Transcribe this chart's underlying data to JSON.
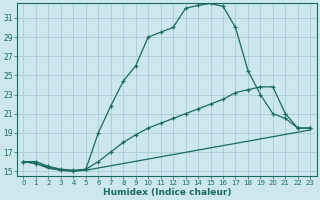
{
  "xlabel": "Humidex (Indice chaleur)",
  "bg_color": "#cce8ee",
  "grid_color": "#aaccd4",
  "line_color": "#1a6b5a",
  "xlim": [
    -0.5,
    23.5
  ],
  "ylim": [
    14.5,
    32.5
  ],
  "yticks": [
    15,
    17,
    19,
    21,
    23,
    25,
    27,
    29,
    31
  ],
  "xticks": [
    0,
    1,
    2,
    3,
    4,
    5,
    6,
    7,
    8,
    9,
    10,
    11,
    12,
    13,
    14,
    15,
    16,
    17,
    18,
    19,
    20,
    21,
    22,
    23
  ],
  "curve1_x": [
    0,
    1,
    2,
    3,
    4,
    5,
    6,
    7,
    8,
    9,
    10,
    11,
    12,
    13,
    14,
    15,
    16,
    17,
    18,
    19,
    20,
    21,
    22,
    23
  ],
  "curve1_y": [
    16.0,
    16.0,
    15.5,
    15.2,
    15.1,
    15.2,
    19.0,
    21.8,
    24.4,
    26.0,
    29.0,
    29.5,
    30.0,
    32.0,
    32.3,
    32.5,
    32.2,
    30.0,
    25.5,
    23.0,
    21.0,
    20.5,
    19.5,
    19.5
  ],
  "curve2_x": [
    0,
    1,
    2,
    3,
    4,
    5,
    6,
    7,
    8,
    9,
    10,
    11,
    12,
    13,
    14,
    15,
    16,
    17,
    18,
    19,
    20,
    21,
    22,
    23
  ],
  "curve2_y": [
    16.0,
    15.8,
    15.4,
    15.1,
    15.0,
    15.2,
    16.0,
    17.0,
    18.0,
    18.8,
    19.5,
    20.0,
    20.5,
    21.0,
    21.5,
    22.0,
    22.5,
    23.2,
    23.5,
    23.8,
    23.8,
    21.0,
    19.5,
    19.5
  ],
  "curve3_x": [
    0,
    1,
    2,
    3,
    4,
    5,
    23
  ],
  "curve3_y": [
    16.0,
    15.8,
    15.3,
    15.1,
    15.0,
    15.1,
    19.3
  ]
}
